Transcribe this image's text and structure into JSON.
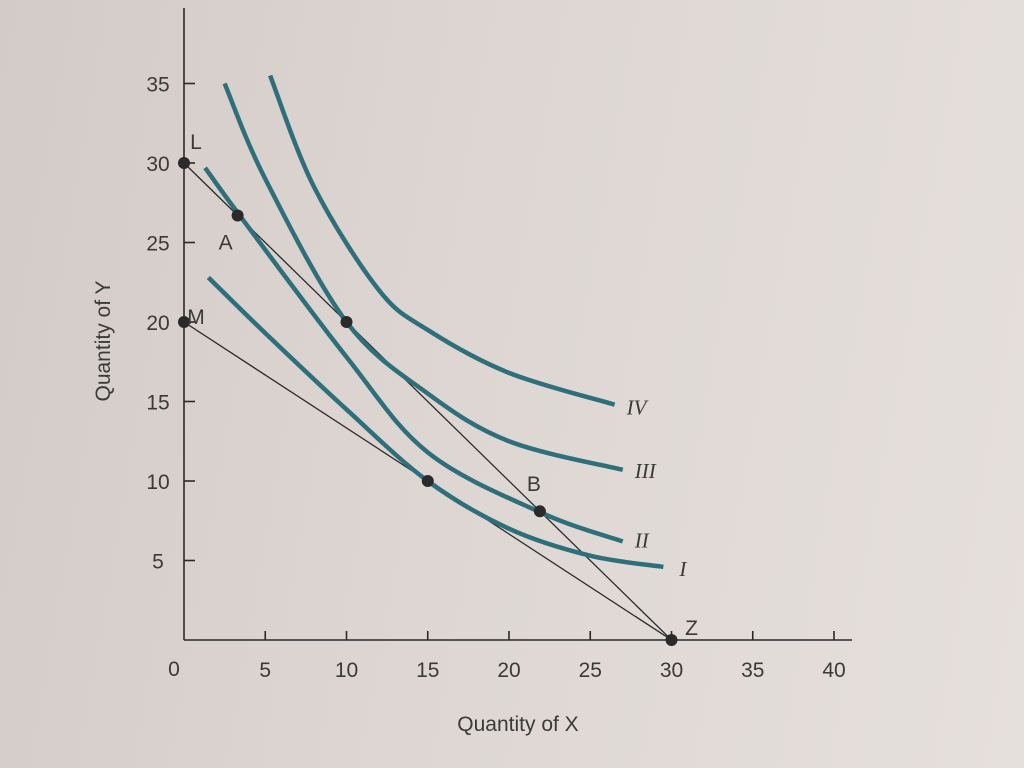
{
  "chart_data": {
    "type": "line",
    "xlabel": "Quantity of X",
    "ylabel": "Quantity of Y",
    "xlim": [
      0,
      40
    ],
    "ylim": [
      0,
      35
    ],
    "x_ticks": [
      5,
      10,
      15,
      20,
      25,
      30,
      35,
      40
    ],
    "y_ticks": [
      5,
      10,
      15,
      20,
      25,
      30,
      35
    ],
    "origin_label": "0",
    "grid": false,
    "indifference_curves": [
      {
        "name": "I",
        "x": [
          1.5,
          5,
          10,
          15,
          20,
          25,
          29.5
        ],
        "y": [
          22.8,
          19.3,
          14.5,
          10.0,
          7.0,
          5.3,
          4.6
        ]
      },
      {
        "name": "II",
        "x": [
          1.3,
          3.5,
          10,
          15,
          22,
          27
        ],
        "y": [
          29.7,
          26.6,
          17.8,
          11.8,
          8.0,
          6.2
        ]
      },
      {
        "name": "III",
        "x": [
          2.5,
          5,
          10,
          15,
          20,
          27
        ],
        "y": [
          35.0,
          29.0,
          20.0,
          15.5,
          12.5,
          10.7
        ]
      },
      {
        "name": "IV",
        "x": [
          5.3,
          8,
          12,
          15,
          20,
          26.5
        ],
        "y": [
          35.5,
          28.5,
          22.0,
          19.5,
          16.8,
          14.8
        ]
      }
    ],
    "budget_lines": [
      {
        "name": "LZ",
        "x": [
          0,
          30
        ],
        "y": [
          30,
          0
        ]
      },
      {
        "name": "MZ",
        "x": [
          0,
          30
        ],
        "y": [
          20,
          0
        ]
      }
    ],
    "points": [
      {
        "label": "L",
        "x": 0,
        "y": 30,
        "dot": true
      },
      {
        "label": "M",
        "x": 0,
        "y": 20,
        "dot": true
      },
      {
        "label": "A",
        "x": 3.3,
        "y": 26.7,
        "dot": true
      },
      {
        "label": "",
        "x": 10,
        "y": 20,
        "dot": true
      },
      {
        "label": "",
        "x": 15,
        "y": 10,
        "dot": true
      },
      {
        "label": "B",
        "x": 21.9,
        "y": 8.1,
        "dot": true
      },
      {
        "label": "Z",
        "x": 30,
        "y": 0,
        "dot": true
      }
    ],
    "colors": {
      "curve": "#2f6f7a",
      "line": "#2a2a2a",
      "text": "#3a3a3a",
      "dot": "#2a2a2a"
    }
  }
}
